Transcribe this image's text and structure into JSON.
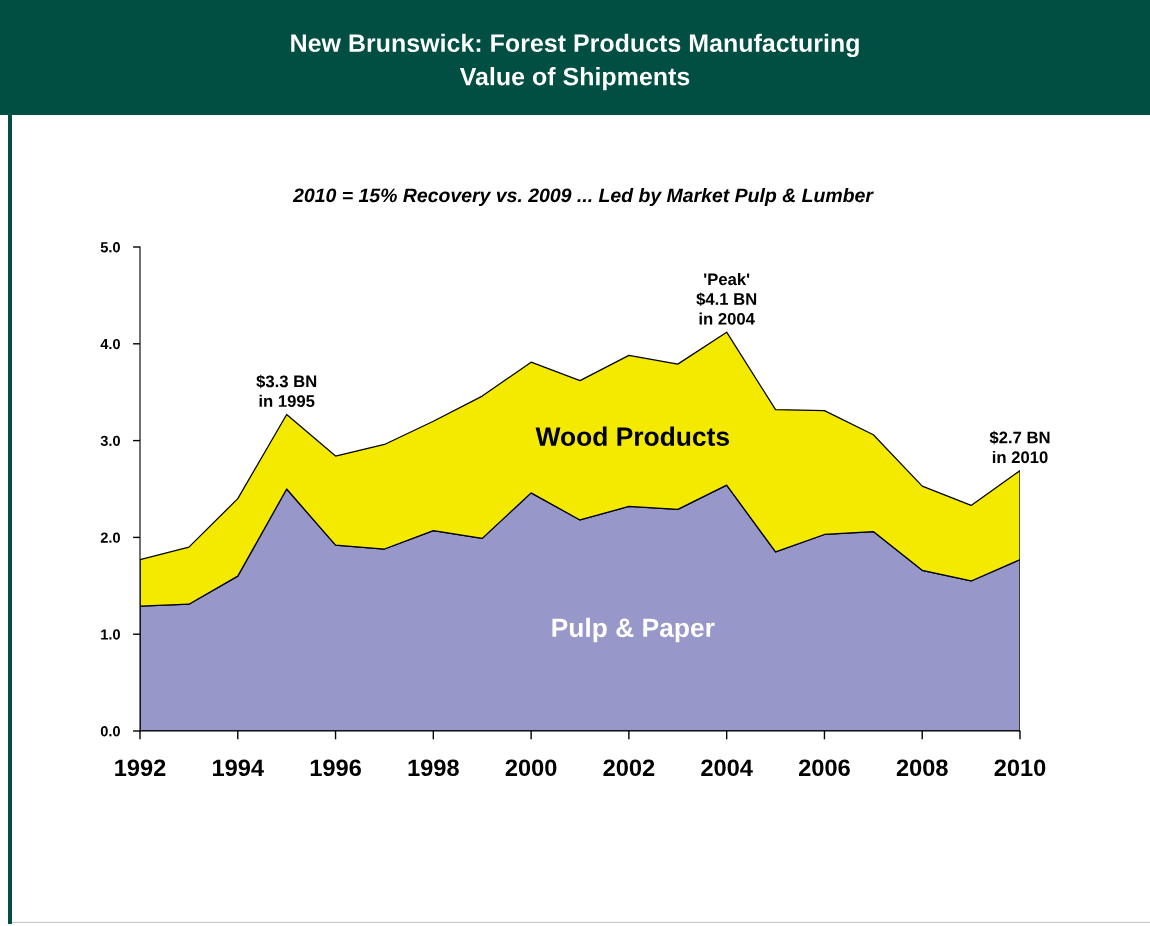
{
  "chart_data": {
    "type": "area",
    "title": "New Brunswick: Forest Products Manufacturing\nValue of Shipments",
    "subtitle": "2010 = 15% Recovery vs. 2009 ... Led by Market Pulp & Lumber",
    "x": [
      1992,
      1993,
      1994,
      1995,
      1996,
      1997,
      1998,
      1999,
      2000,
      2001,
      2002,
      2003,
      2004,
      2005,
      2006,
      2007,
      2008,
      2009,
      2010
    ],
    "stacked": true,
    "series": [
      {
        "name": "Pulp & Paper",
        "color": "#9797c9",
        "values": [
          1.29,
          1.31,
          1.6,
          2.5,
          1.92,
          1.88,
          2.07,
          1.99,
          2.46,
          2.18,
          2.32,
          2.29,
          2.54,
          1.85,
          2.03,
          2.06,
          1.66,
          1.55,
          1.77
        ]
      },
      {
        "name": "Wood Products",
        "color": "#f3ea00",
        "values": [
          0.48,
          0.59,
          0.8,
          0.77,
          0.92,
          1.08,
          1.13,
          1.47,
          1.35,
          1.44,
          1.56,
          1.5,
          1.58,
          1.47,
          1.28,
          1.0,
          0.87,
          0.78,
          0.92
        ]
      }
    ],
    "xlim": [
      1992,
      2010
    ],
    "xticks": [
      1992,
      1994,
      1996,
      1998,
      2000,
      2002,
      2004,
      2006,
      2008,
      2010
    ],
    "ylim": [
      0,
      5
    ],
    "yticks": [
      {
        "value": 0,
        "label": "0.0"
      },
      {
        "value": 1,
        "label": "1.0"
      },
      {
        "value": 2,
        "label": "2.0"
      },
      {
        "value": 3,
        "label": "3.0"
      },
      {
        "value": 4,
        "label": "4.0"
      },
      {
        "value": 5,
        "label": "5.0"
      }
    ],
    "annotations": [
      {
        "text": "$3.3 BN\nin 1995",
        "x": 1995,
        "y": 3.27
      },
      {
        "text": "'Peak'\n$4.1 BN\nin 2004",
        "x": 2004,
        "y": 4.12
      },
      {
        "text": "$2.7 BN\nin 2010",
        "x": 2010,
        "y": 2.69
      }
    ]
  }
}
